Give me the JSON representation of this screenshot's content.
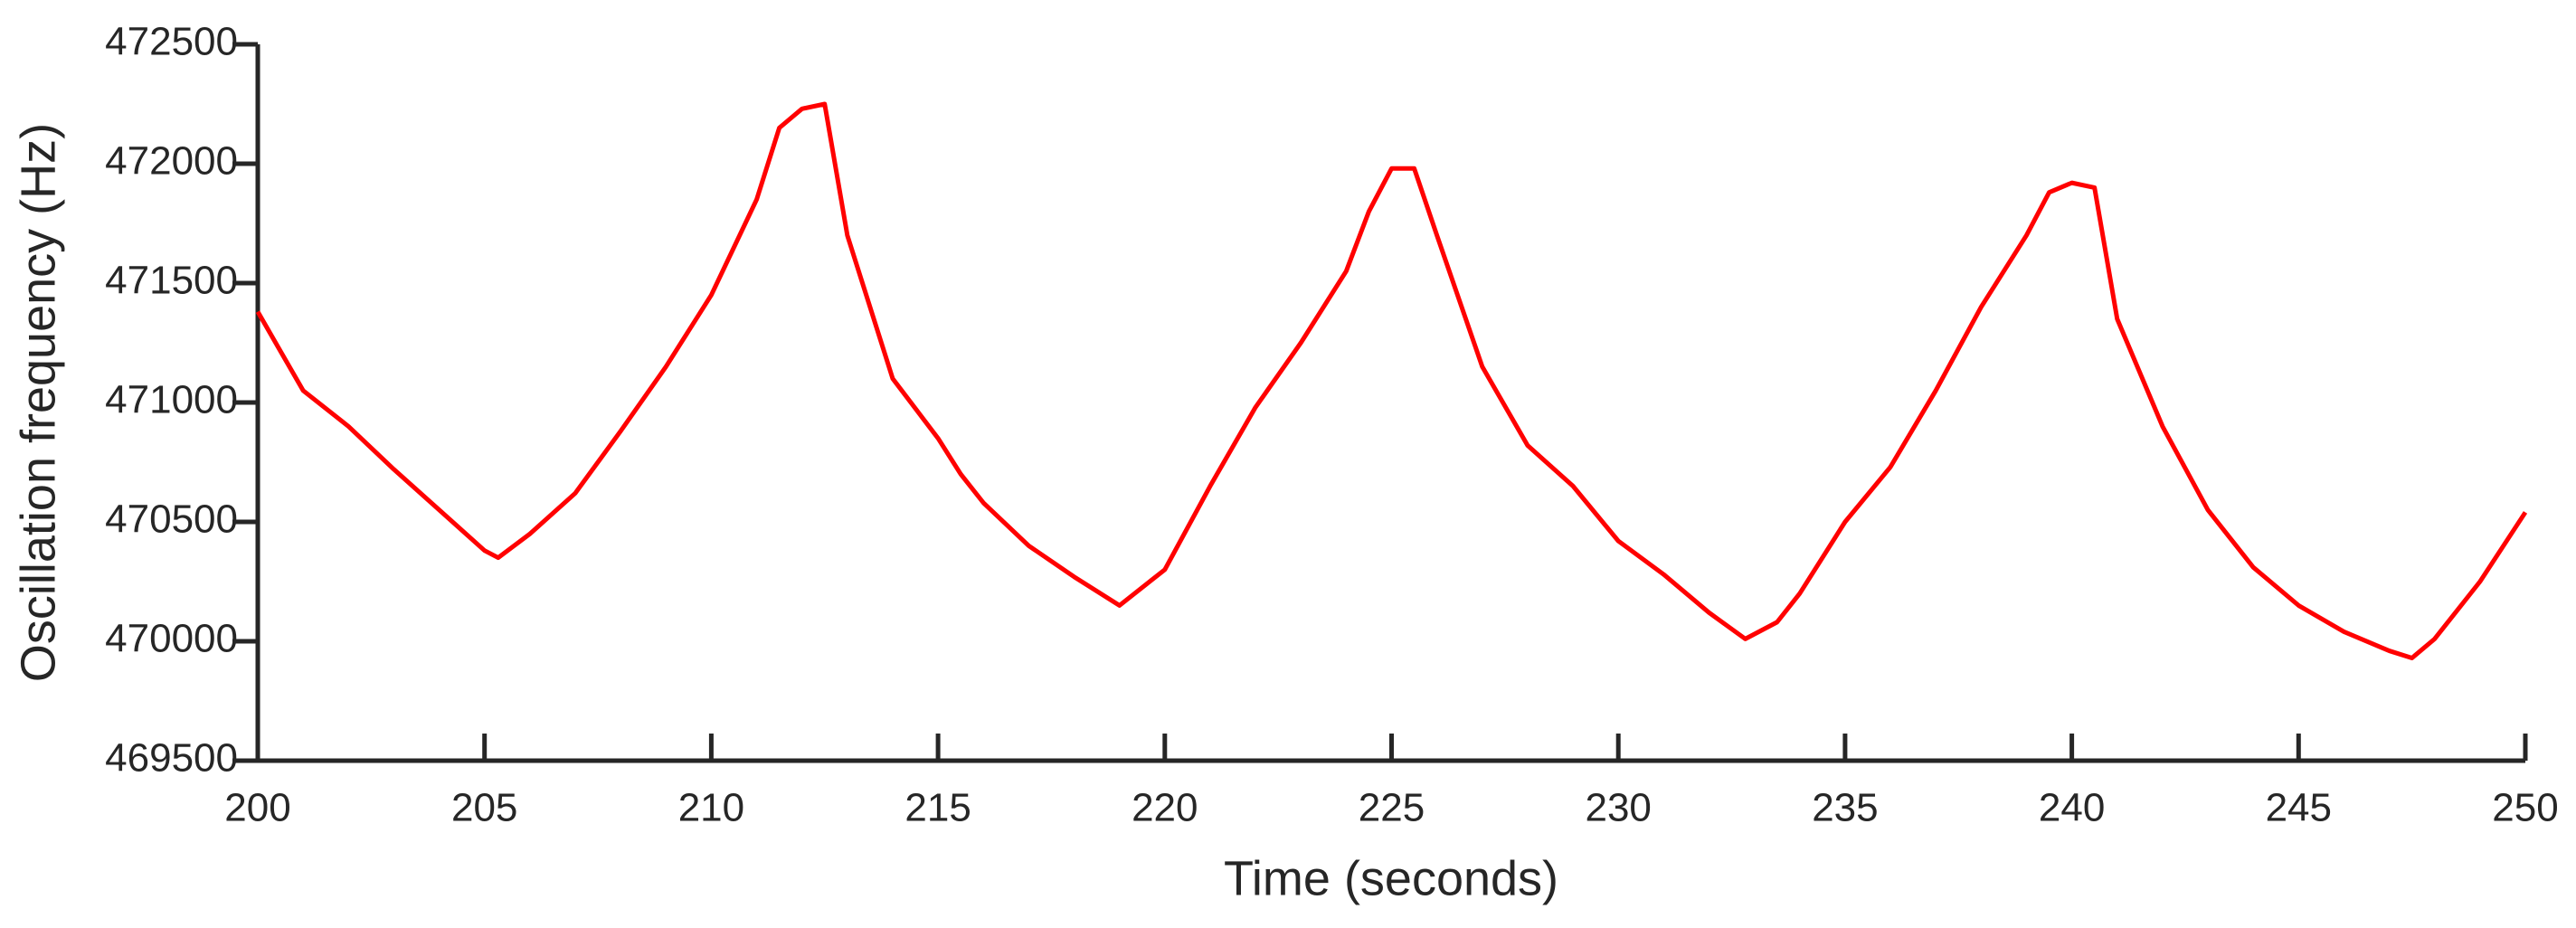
{
  "chart_data": {
    "type": "line",
    "xlabel": "Time (seconds)",
    "ylabel": "Oscillation frequency (Hz)",
    "xlim": [
      200,
      250
    ],
    "ylim": [
      469500,
      472500
    ],
    "xticks": [
      200,
      205,
      210,
      215,
      220,
      225,
      230,
      235,
      240,
      245,
      250
    ],
    "yticks": [
      469500,
      470000,
      470500,
      471000,
      471500,
      472000,
      472500
    ],
    "x": [
      200,
      201,
      202,
      203,
      204,
      205,
      205.3,
      206,
      207,
      208,
      209,
      210,
      211,
      211.5,
      212,
      212.5,
      213,
      214,
      215,
      215.5,
      216,
      217,
      218,
      219,
      220,
      221,
      222,
      223,
      224,
      224.5,
      225,
      225.5,
      226,
      227,
      228,
      229,
      230,
      231,
      232,
      232.8,
      233.5,
      234,
      235,
      236,
      237,
      238,
      239,
      239.5,
      240,
      240.5,
      241,
      242,
      243,
      244,
      245,
      246,
      247,
      247.5,
      248,
      249,
      250
    ],
    "series": [
      {
        "name": "Oscillation frequency",
        "color": "#ff0000",
        "values": [
          471380,
          471050,
          470900,
          470720,
          470550,
          470380,
          470350,
          470450,
          470620,
          470880,
          471150,
          471450,
          471850,
          472150,
          472230,
          472250,
          471700,
          471100,
          470850,
          470700,
          470580,
          470400,
          470270,
          470150,
          470300,
          470650,
          470980,
          471250,
          471550,
          471800,
          471980,
          471980,
          471700,
          471150,
          470820,
          470650,
          470420,
          470280,
          470120,
          470010,
          470080,
          470200,
          470500,
          470730,
          471050,
          471400,
          471700,
          471880,
          471920,
          471900,
          471350,
          470900,
          470550,
          470310,
          470150,
          470040,
          469960,
          469930,
          470010,
          470250,
          470540
        ]
      }
    ]
  }
}
